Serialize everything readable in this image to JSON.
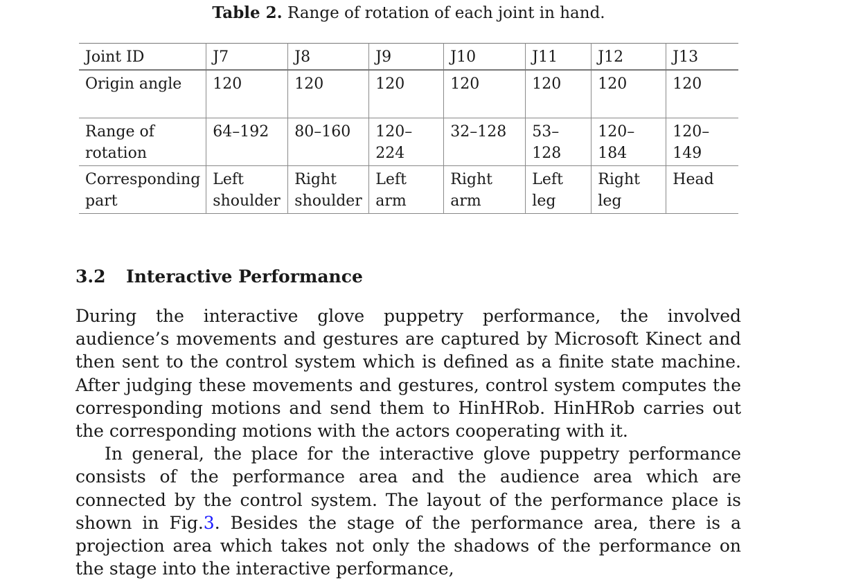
{
  "caption": {
    "label": "Table 2.",
    "text": "Range of rotation of each joint in hand."
  },
  "table": {
    "headers": [
      "Joint ID",
      "J7",
      "J8",
      "J9",
      "J10",
      "J11",
      "J12",
      "J13"
    ],
    "rows": [
      {
        "label": "Origin angle",
        "cells": [
          "120",
          "120",
          "120",
          "120",
          "120",
          "120",
          "120"
        ]
      },
      {
        "label": "Range of rotation",
        "cells": [
          "64–192",
          "80–160",
          "120–224",
          "32–128",
          "53–128",
          "120–184",
          "120–149"
        ]
      },
      {
        "label": "Corresponding part",
        "cells": [
          "Left shoulder",
          "Right shoulder",
          "Left arm",
          "Right arm",
          "Left leg",
          "Right leg",
          "Head"
        ]
      }
    ]
  },
  "section": {
    "number": "3.2",
    "title": "Interactive Performance"
  },
  "paragraphs": {
    "p1": "During the interactive glove puppetry performance, the involved audience’s movements and gestures are captured by Microsoft Kinect and then sent to the control system which is defined as a finite state machine. After judging these movements and gestures, control system computes the corresponding motions and send them to HinHRob. HinHRob carries out the corresponding motions with the actors cooperating with it.",
    "p2_before": "In general, the place for the interactive glove puppetry performance consists of the performance area and the audience area which are connected by the control system. The layout of the performance place is shown in Fig.",
    "p2_ref": "3",
    "p2_after": ". Besides the stage of the performance area, there is a projection area which takes not only the shadows of the performance on the stage into the interactive performance,"
  }
}
